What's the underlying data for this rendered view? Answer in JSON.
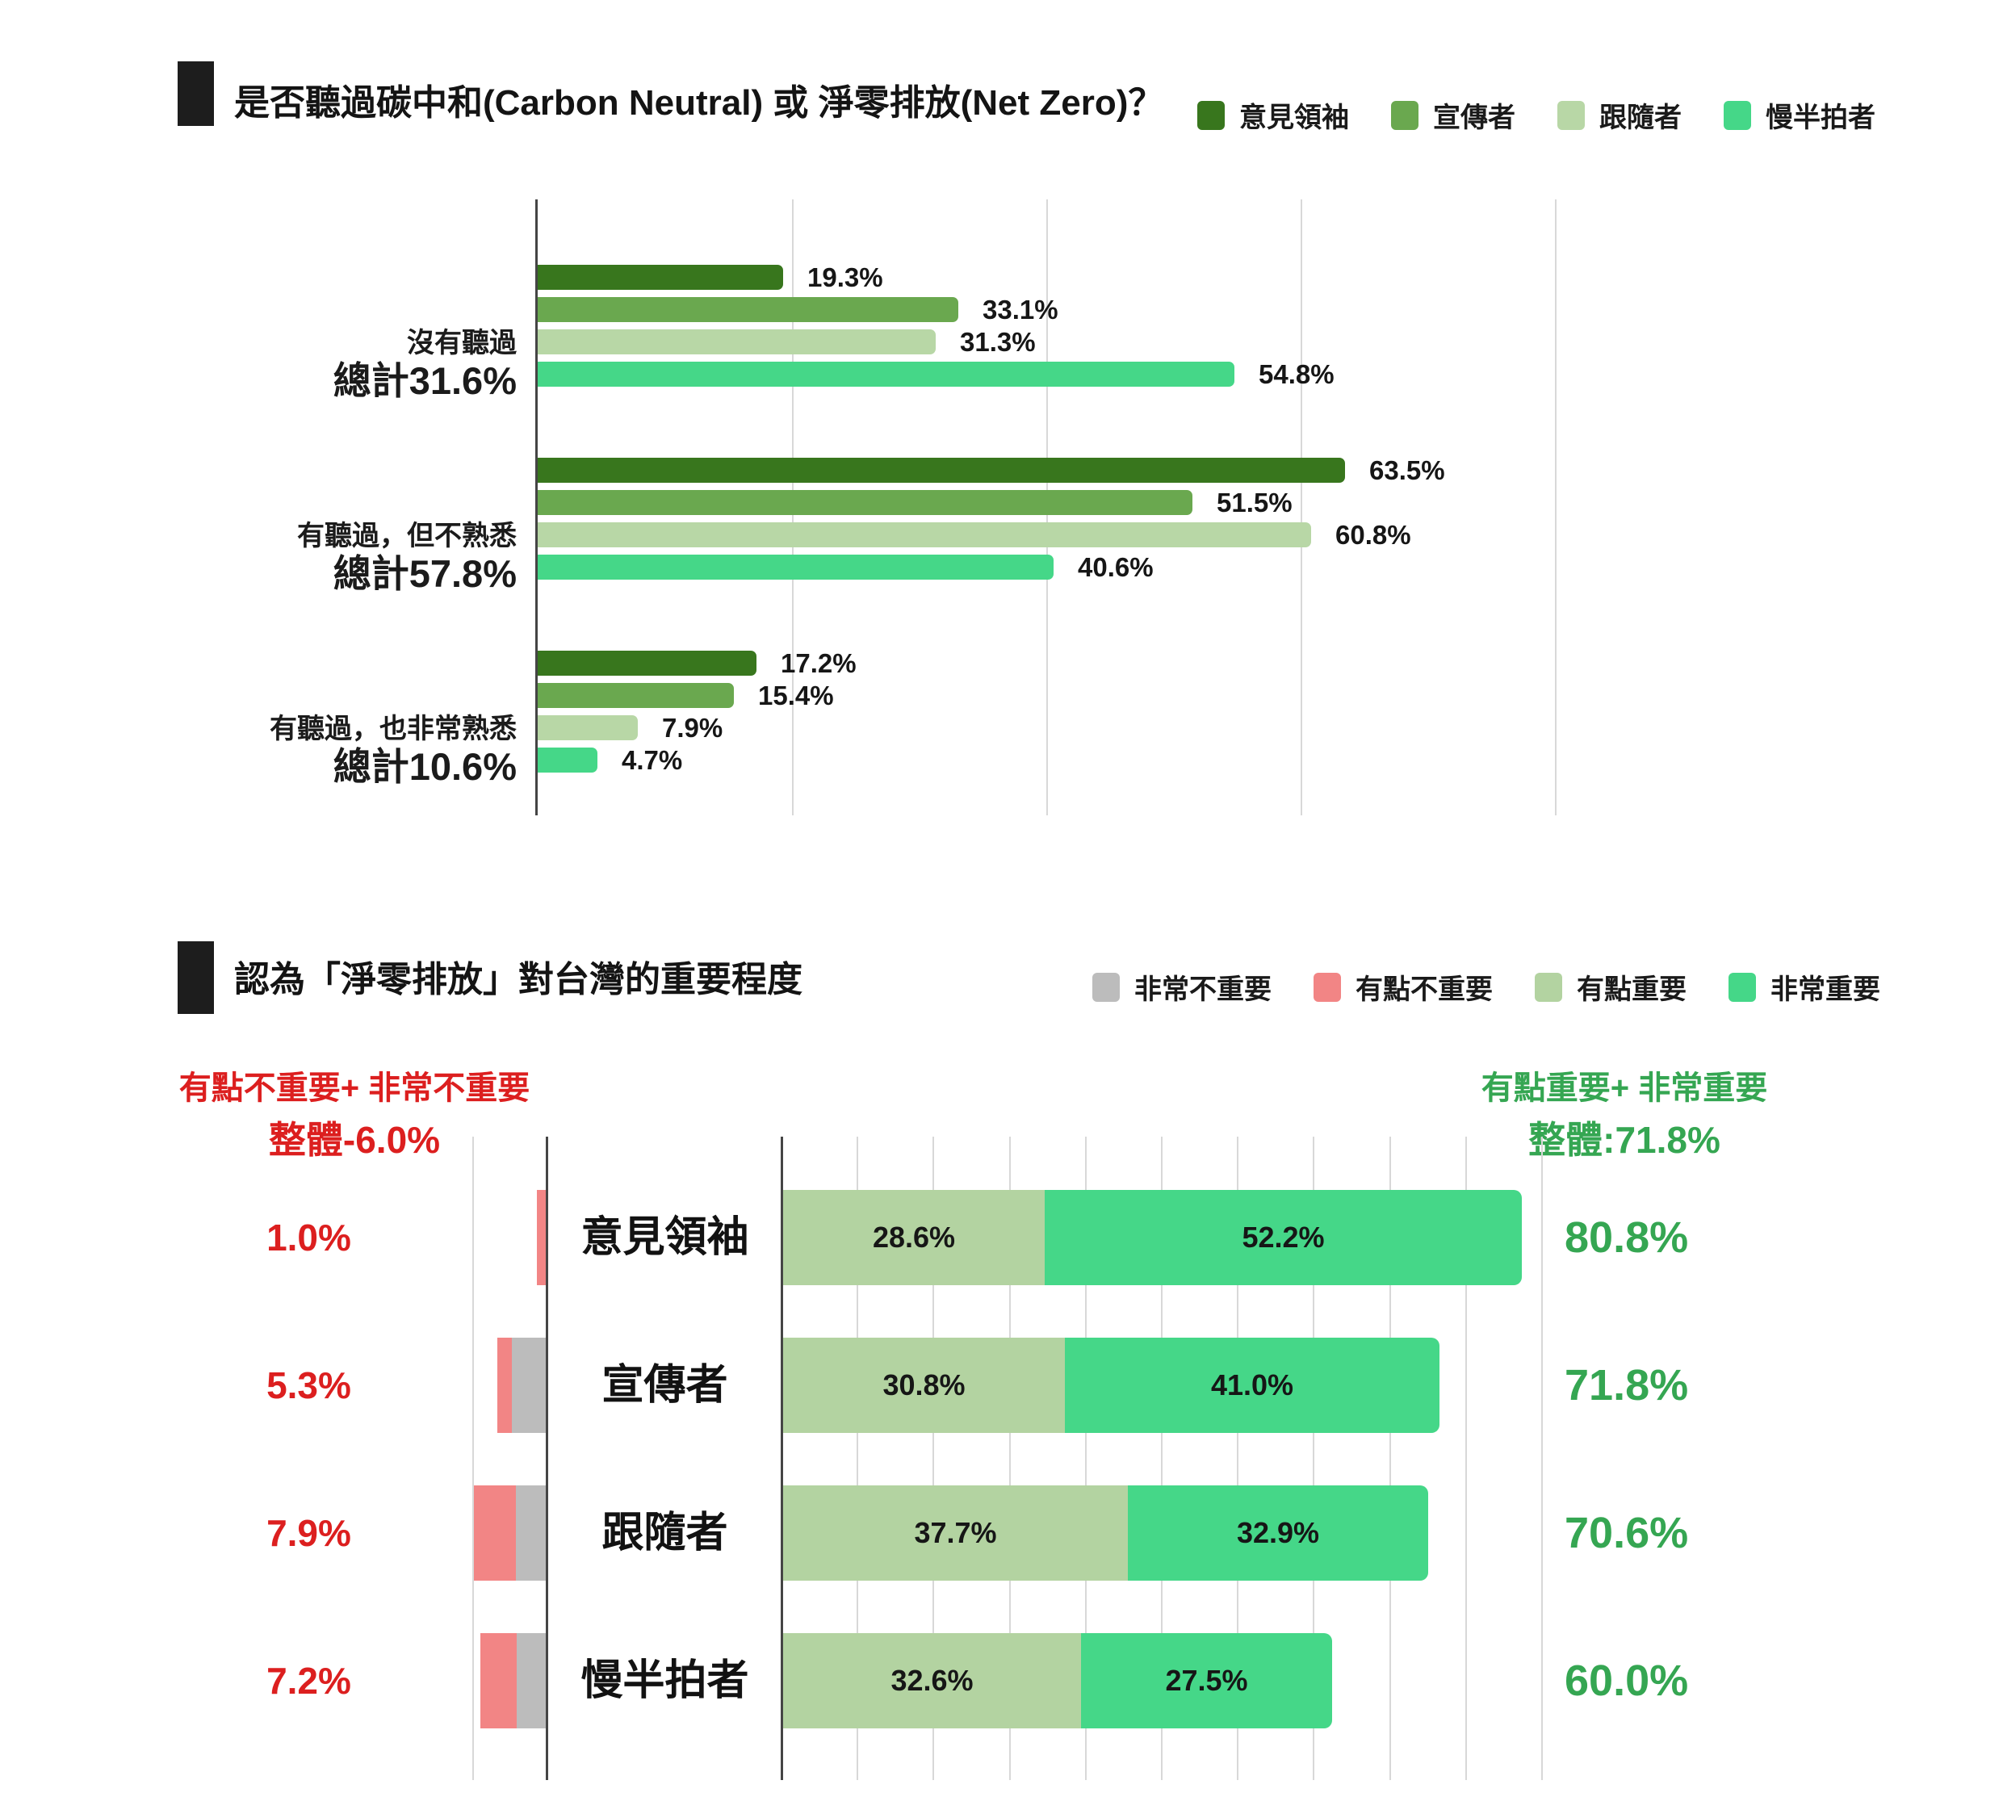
{
  "page": {
    "background": "#ffffff"
  },
  "chart1": {
    "title": "是否聽過碳中和(Carbon Neutral) 或 淨零排放(Net Zero)？",
    "legend": [
      {
        "label": "意見領袖",
        "color": "#38761d"
      },
      {
        "label": "宣傳者",
        "color": "#6aa84f"
      },
      {
        "label": "跟隨者",
        "color": "#b8d7a6"
      },
      {
        "label": "慢半拍者",
        "color": "#45d788"
      }
    ],
    "groups": [
      {
        "label": "沒有聽過",
        "total": "總計31.6%",
        "values": [
          19.3,
          33.1,
          31.3,
          54.8
        ],
        "value_labels": [
          "19.3%",
          "33.1%",
          "31.3%",
          "54.8%"
        ]
      },
      {
        "label": "有聽過，但不熟悉",
        "total": "總計57.8%",
        "values": [
          63.5,
          51.5,
          60.8,
          40.6
        ],
        "value_labels": [
          "63.5%",
          "51.5%",
          "60.8%",
          "40.6%"
        ]
      },
      {
        "label": "有聽過，也非常熟悉",
        "total": "總計10.6%",
        "values": [
          17.2,
          15.4,
          7.9,
          4.7
        ],
        "value_labels": [
          "17.2%",
          "15.4%",
          "7.9%",
          "4.7%"
        ]
      }
    ]
  },
  "chart2": {
    "title": "認為「淨零排放」對台灣的重要程度",
    "legend": [
      {
        "label": "非常不重要",
        "color": "#bcbcbc"
      },
      {
        "label": "有點不重要",
        "color": "#f28585"
      },
      {
        "label": "有點重要",
        "color": "#b3d3a1"
      },
      {
        "label": "非常重要",
        "color": "#45d788"
      }
    ],
    "negative_header": {
      "line1": "有點不重要+ 非常不重要",
      "line2": "整體-6.0%",
      "color": "#dc1f1f"
    },
    "positive_header": {
      "line1": "有點重要+ 非常重要",
      "line2": "整體:71.8%",
      "color": "#35a652"
    },
    "rows": [
      {
        "label": "意見領袖",
        "negative_total": "1.0%",
        "negative_parts": {
          "somewhat_unimportant": 1.0,
          "very_unimportant": 0.0
        },
        "somewhat_important": 28.6,
        "very_important": 52.2,
        "somewhat_label": "28.6%",
        "very_label": "52.2%",
        "positive_total": "80.8%"
      },
      {
        "label": "宣傳者",
        "negative_total": "5.3%",
        "negative_parts": {
          "somewhat_unimportant": 1.6,
          "very_unimportant": 3.7
        },
        "somewhat_important": 30.8,
        "very_important": 41.0,
        "somewhat_label": "30.8%",
        "very_label": "41.0%",
        "positive_total": "71.8%"
      },
      {
        "label": "跟隨者",
        "negative_total": "7.9%",
        "negative_parts": {
          "somewhat_unimportant": 4.6,
          "very_unimportant": 3.3
        },
        "somewhat_important": 37.7,
        "very_important": 32.9,
        "somewhat_label": "37.7%",
        "very_label": "32.9%",
        "positive_total": "70.6%"
      },
      {
        "label": "慢半拍者",
        "negative_total": "7.2%",
        "negative_parts": {
          "somewhat_unimportant": 4.0,
          "very_unimportant": 3.2
        },
        "somewhat_important": 32.6,
        "very_important": 27.5,
        "somewhat_label": "32.6%",
        "very_label": "27.5%",
        "positive_total": "60.0%"
      }
    ]
  },
  "chart_data": [
    {
      "type": "bar",
      "orientation": "horizontal",
      "title": "是否聽過碳中和(Carbon Neutral) 或 淨零排放(Net Zero)？",
      "categories": [
        "沒有聽過",
        "有聽過，但不熟悉",
        "有聽過，也非常熟悉"
      ],
      "category_totals": [
        "總計31.6%",
        "總計57.8%",
        "總計10.6%"
      ],
      "series": [
        {
          "name": "意見領袖",
          "color": "#38761d",
          "values": [
            19.3,
            63.5,
            17.2
          ]
        },
        {
          "name": "宣傳者",
          "color": "#6aa84f",
          "values": [
            33.1,
            51.5,
            15.4
          ]
        },
        {
          "name": "跟隨者",
          "color": "#b8d7a6",
          "values": [
            31.3,
            60.8,
            7.9
          ]
        },
        {
          "name": "慢半拍者",
          "color": "#45d788",
          "values": [
            54.8,
            40.6,
            4.7
          ]
        }
      ],
      "unit": "%",
      "xlim": [
        0,
        80
      ],
      "gridline_interval": 20,
      "grid": true,
      "legend_position": "top-right"
    },
    {
      "type": "bar",
      "subtype": "diverging-stacked",
      "orientation": "horizontal",
      "title": "認為「淨零排放」對台灣的重要程度",
      "categories": [
        "意見領袖",
        "宣傳者",
        "跟隨者",
        "慢半拍者"
      ],
      "series": [
        {
          "name": "有點不重要",
          "color": "#f28585",
          "side": "negative",
          "values": [
            1.0,
            1.6,
            4.6,
            4.0
          ],
          "estimated_from_pixels": true
        },
        {
          "name": "非常不重要",
          "color": "#bcbcbc",
          "side": "negative",
          "values": [
            0.0,
            3.7,
            3.3,
            3.2
          ],
          "estimated_from_pixels": true
        },
        {
          "name": "有點重要",
          "color": "#b3d3a1",
          "side": "positive",
          "values": [
            28.6,
            30.8,
            37.7,
            32.6
          ]
        },
        {
          "name": "非常重要",
          "color": "#45d788",
          "side": "positive",
          "values": [
            52.2,
            41.0,
            32.9,
            27.5
          ]
        }
      ],
      "negative_totals": [
        1.0,
        5.3,
        7.9,
        7.2
      ],
      "positive_totals": [
        80.8,
        71.8,
        70.6,
        60.0
      ],
      "annotations": {
        "negative": "有點不重要+ 非常不重要 整體-6.0%",
        "positive": "有點重要+ 非常重要 整體:71.8%"
      },
      "unit": "%",
      "grid": true,
      "legend_position": "top-right"
    }
  ]
}
